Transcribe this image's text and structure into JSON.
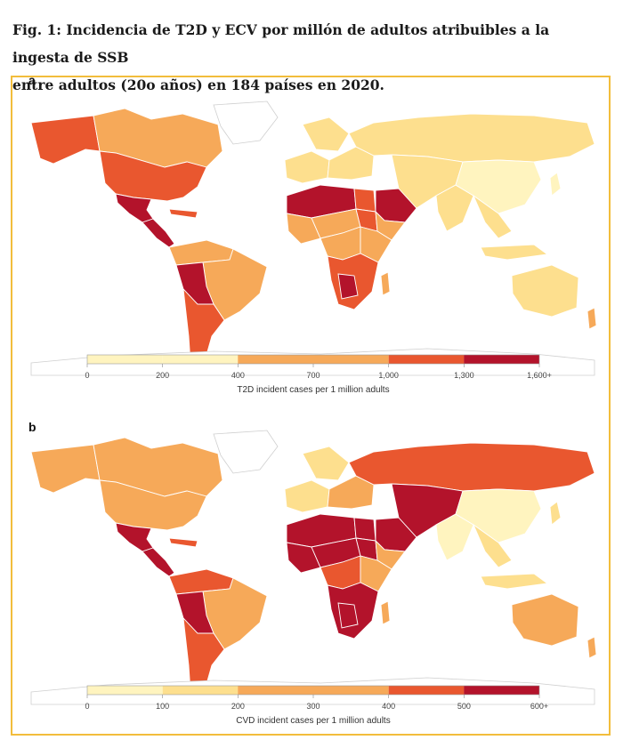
{
  "caption": {
    "line1": "Fig. 1: Incidencia de T2D y ECV por millón de adultos atribuibles a la ingesta de SSB",
    "line2": "entre adultos (20o años) en 184 países en 2020."
  },
  "colors": {
    "frame": "#f2bd3c",
    "ocean": "#ffffff",
    "nodata": "#ffffff",
    "border": "#dcdcdc",
    "scale": [
      "#fff4bf",
      "#fddf8e",
      "#f6a959",
      "#e9572f",
      "#b3132b"
    ]
  },
  "panels": [
    {
      "id": "a",
      "letter": "a",
      "legend": {
        "title": "T2D incident cases per 1 million adults",
        "ticks": [
          "0",
          "200",
          "400",
          "700",
          "1,000",
          "1,300",
          "1,600+"
        ]
      },
      "regions": [
        {
          "name": "Alaska",
          "class": 3
        },
        {
          "name": "Canada",
          "class": 2
        },
        {
          "name": "USA",
          "class": 3
        },
        {
          "name": "Mexico",
          "class": 4
        },
        {
          "name": "Central America",
          "class": 4
        },
        {
          "name": "Caribbean",
          "class": 3
        },
        {
          "name": "Northern South America",
          "class": 2
        },
        {
          "name": "Brazil",
          "class": 2
        },
        {
          "name": "Peru & Bolivia",
          "class": 4
        },
        {
          "name": "Southern Cone",
          "class": 3
        },
        {
          "name": "Greenland",
          "class": 0,
          "nodata": true
        },
        {
          "name": "Western Europe",
          "class": 1
        },
        {
          "name": "Northern Europe",
          "class": 1
        },
        {
          "name": "Eastern Europe",
          "class": 1
        },
        {
          "name": "Russia",
          "class": 1
        },
        {
          "name": "North Africa",
          "class": 4
        },
        {
          "name": "Egypt",
          "class": 3
        },
        {
          "name": "Arabian Peninsula",
          "class": 4
        },
        {
          "name": "West Africa",
          "class": 2
        },
        {
          "name": "Sahel",
          "class": 2
        },
        {
          "name": "Sudan",
          "class": 3
        },
        {
          "name": "Horn of Africa",
          "class": 2
        },
        {
          "name": "Central Africa",
          "class": 2
        },
        {
          "name": "East Africa",
          "class": 2
        },
        {
          "name": "Southern Africa",
          "class": 3
        },
        {
          "name": "Namibia & Botswana",
          "class": 4
        },
        {
          "name": "Madagascar",
          "class": 2
        },
        {
          "name": "Iran & Central Asia",
          "class": 1
        },
        {
          "name": "South Asia",
          "class": 1
        },
        {
          "name": "China & Mongolia",
          "class": 0
        },
        {
          "name": "Southeast Asia",
          "class": 1
        },
        {
          "name": "Japan",
          "class": 0
        },
        {
          "name": "Indonesia",
          "class": 1
        },
        {
          "name": "Australia",
          "class": 1
        },
        {
          "name": "New Zealand",
          "class": 2
        },
        {
          "name": "Antarctica",
          "class": 0,
          "nodata": true
        }
      ]
    },
    {
      "id": "b",
      "letter": "b",
      "legend": {
        "title": "CVD incident cases per 1 million adults",
        "ticks": [
          "0",
          "100",
          "200",
          "300",
          "400",
          "500",
          "600+"
        ]
      },
      "regions": [
        {
          "name": "Alaska",
          "class": 2
        },
        {
          "name": "Canada",
          "class": 2
        },
        {
          "name": "USA",
          "class": 2
        },
        {
          "name": "Mexico",
          "class": 4
        },
        {
          "name": "Central America",
          "class": 4
        },
        {
          "name": "Caribbean",
          "class": 3
        },
        {
          "name": "Northern South America",
          "class": 3
        },
        {
          "name": "Brazil",
          "class": 2
        },
        {
          "name": "Peru & Bolivia",
          "class": 4
        },
        {
          "name": "Southern Cone",
          "class": 3
        },
        {
          "name": "Greenland",
          "class": 0,
          "nodata": true
        },
        {
          "name": "Western Europe",
          "class": 1
        },
        {
          "name": "Northern Europe",
          "class": 1
        },
        {
          "name": "Eastern Europe",
          "class": 2
        },
        {
          "name": "Russia",
          "class": 3
        },
        {
          "name": "North Africa",
          "class": 4
        },
        {
          "name": "Egypt",
          "class": 4
        },
        {
          "name": "Arabian Peninsula",
          "class": 4
        },
        {
          "name": "West Africa",
          "class": 4
        },
        {
          "name": "Sahel",
          "class": 4
        },
        {
          "name": "Sudan",
          "class": 4
        },
        {
          "name": "Horn of Africa",
          "class": 2
        },
        {
          "name": "Central Africa",
          "class": 3
        },
        {
          "name": "East Africa",
          "class": 2
        },
        {
          "name": "Southern Africa",
          "class": 4
        },
        {
          "name": "Namibia & Botswana",
          "class": 4
        },
        {
          "name": "Madagascar",
          "class": 2
        },
        {
          "name": "Iran & Central Asia",
          "class": 4
        },
        {
          "name": "South Asia",
          "class": 0
        },
        {
          "name": "China & Mongolia",
          "class": 0
        },
        {
          "name": "Southeast Asia",
          "class": 1
        },
        {
          "name": "Japan",
          "class": 1
        },
        {
          "name": "Indonesia",
          "class": 1
        },
        {
          "name": "Australia",
          "class": 2
        },
        {
          "name": "New Zealand",
          "class": 2
        },
        {
          "name": "Antarctica",
          "class": 0,
          "nodata": true
        }
      ]
    }
  ]
}
